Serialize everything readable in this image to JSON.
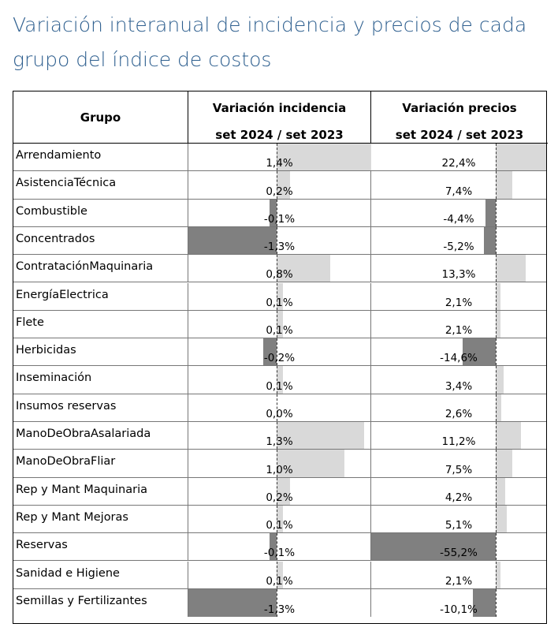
{
  "title": "Variación interanual de incidencia y precios de cada grupo del índice de costos",
  "chart_data": {
    "type": "table",
    "title": "Variación interanual de incidencia y precios de cada grupo del índice de costos",
    "columns": {
      "grupo": "Grupo",
      "incidencia_line1": "Variación incidencia",
      "incidencia_line2": "set 2024 / set 2023",
      "precios_line1": "Variación precios",
      "precios_line2": "set 2024 / set 2023"
    },
    "incidencia_range": [
      -1.3,
      1.4
    ],
    "precios_range": [
      -55.2,
      22.4
    ],
    "rows": [
      {
        "grupo": "Arrendamiento",
        "incidencia": 1.4,
        "incidencia_label": "1,4%",
        "precios": 22.4,
        "precios_label": "22,4%"
      },
      {
        "grupo": "AsistenciaTécnica",
        "incidencia": 0.2,
        "incidencia_label": "0,2%",
        "precios": 7.4,
        "precios_label": "7,4%"
      },
      {
        "grupo": "Combustible",
        "incidencia": -0.1,
        "incidencia_label": "-0,1%",
        "precios": -4.4,
        "precios_label": "-4,4%"
      },
      {
        "grupo": "Concentrados",
        "incidencia": -1.3,
        "incidencia_label": "-1,3%",
        "precios": -5.2,
        "precios_label": "-5,2%"
      },
      {
        "grupo": "ContrataciónMaquinaria",
        "incidencia": 0.8,
        "incidencia_label": "0,8%",
        "precios": 13.3,
        "precios_label": "13,3%"
      },
      {
        "grupo": "EnergíaElectrica",
        "incidencia": 0.1,
        "incidencia_label": "0,1%",
        "precios": 2.1,
        "precios_label": "2,1%"
      },
      {
        "grupo": "Flete",
        "incidencia": 0.1,
        "incidencia_label": "0,1%",
        "precios": 2.1,
        "precios_label": "2,1%"
      },
      {
        "grupo": "Herbicidas",
        "incidencia": -0.2,
        "incidencia_label": "-0,2%",
        "precios": -14.6,
        "precios_label": "-14,6%"
      },
      {
        "grupo": "Inseminación",
        "incidencia": 0.1,
        "incidencia_label": "0,1%",
        "precios": 3.4,
        "precios_label": "3,4%"
      },
      {
        "grupo": "Insumos reservas",
        "incidencia": 0.0,
        "incidencia_label": "0,0%",
        "precios": 2.6,
        "precios_label": "2,6%"
      },
      {
        "grupo": "ManoDeObraAsalariada",
        "incidencia": 1.3,
        "incidencia_label": "1,3%",
        "precios": 11.2,
        "precios_label": "11,2%"
      },
      {
        "grupo": "ManoDeObraFliar",
        "incidencia": 1.0,
        "incidencia_label": "1,0%",
        "precios": 7.5,
        "precios_label": "7,5%"
      },
      {
        "grupo": "Rep y Mant Maquinaria",
        "incidencia": 0.2,
        "incidencia_label": "0,2%",
        "precios": 4.2,
        "precios_label": "4,2%"
      },
      {
        "grupo": "Rep y Mant Mejoras",
        "incidencia": 0.1,
        "incidencia_label": "0,1%",
        "precios": 5.1,
        "precios_label": "5,1%"
      },
      {
        "grupo": "Reservas",
        "incidencia": -0.1,
        "incidencia_label": "-0,1%",
        "precios": -55.2,
        "precios_label": "-55,2%"
      },
      {
        "grupo": "Sanidad e Higiene",
        "incidencia": 0.1,
        "incidencia_label": "0,1%",
        "precios": 2.1,
        "precios_label": "2,1%"
      },
      {
        "grupo": "Semillas y Fertilizantes",
        "incidencia": -1.3,
        "incidencia_label": "-1,3%",
        "precios": -10.1,
        "precios_label": "-10,1%"
      }
    ],
    "colors": {
      "positive": "#d9d9d9",
      "negative": "#808080",
      "title": "#2e5f8f"
    }
  }
}
